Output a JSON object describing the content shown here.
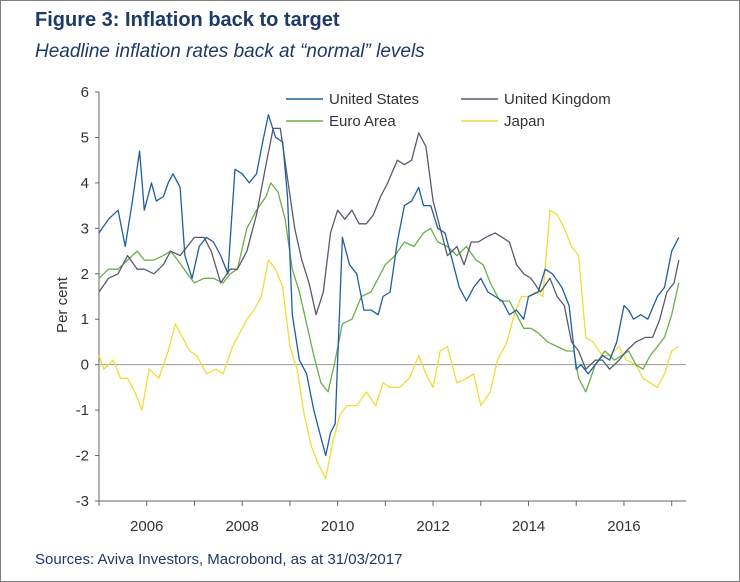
{
  "header": {
    "title": "Figure 3: Inflation back to target",
    "subtitle": "Headline inflation rates back at “normal” levels"
  },
  "footer": {
    "source": "Sources: Aviva Investors, Macrobond, as at 31/03/2017"
  },
  "chart_data": {
    "type": "line",
    "title": "Figure 3: Inflation back to target",
    "subtitle": "Headline inflation rates back at “normal” levels",
    "ylabel": "Per cent",
    "xlabel": "",
    "ylim": [
      -3,
      6
    ],
    "xlim": [
      2005.0,
      2017.3
    ],
    "y_ticks": [
      -3,
      -2,
      -1,
      0,
      1,
      2,
      3,
      4,
      5,
      6
    ],
    "x_ticks": [
      2006,
      2008,
      2010,
      2012,
      2014,
      2016
    ],
    "legend_position": "top-right",
    "zero_line": true,
    "series": [
      {
        "name": "United States",
        "color": "#1f5fa0",
        "x": [
          2005.0,
          2005.2,
          2005.4,
          2005.55,
          2005.7,
          2005.85,
          2005.95,
          2006.1,
          2006.2,
          2006.35,
          2006.45,
          2006.55,
          2006.7,
          2006.8,
          2006.95,
          2007.1,
          2007.25,
          2007.4,
          2007.55,
          2007.7,
          2007.85,
          2008.0,
          2008.15,
          2008.3,
          2008.45,
          2008.55,
          2008.7,
          2008.85,
          2008.95,
          2009.05,
          2009.2,
          2009.35,
          2009.5,
          2009.6,
          2009.75,
          2009.85,
          2009.95,
          2010.1,
          2010.25,
          2010.4,
          2010.55,
          2010.7,
          2010.85,
          2010.95,
          2011.1,
          2011.25,
          2011.4,
          2011.55,
          2011.7,
          2011.8,
          2011.95,
          2012.1,
          2012.25,
          2012.4,
          2012.55,
          2012.7,
          2012.85,
          2013.0,
          2013.15,
          2013.3,
          2013.45,
          2013.6,
          2013.75,
          2013.9,
          2014.0,
          2014.2,
          2014.35,
          2014.5,
          2014.7,
          2014.85,
          2015.0,
          2015.1,
          2015.25,
          2015.4,
          2015.55,
          2015.7,
          2015.85,
          2016.0,
          2016.1,
          2016.2,
          2016.35,
          2016.5,
          2016.7,
          2016.85,
          2017.0,
          2017.15
        ],
        "y": [
          2.9,
          3.2,
          3.4,
          2.6,
          3.6,
          4.7,
          3.4,
          4.0,
          3.6,
          3.7,
          4.0,
          4.2,
          3.9,
          2.4,
          1.9,
          2.6,
          2.8,
          2.7,
          2.4,
          2.0,
          4.3,
          4.2,
          4.0,
          4.2,
          5.0,
          5.5,
          5.0,
          4.9,
          3.7,
          1.1,
          0.1,
          -0.2,
          -1.0,
          -1.4,
          -2.0,
          -1.5,
          -1.3,
          2.8,
          2.2,
          2.0,
          1.2,
          1.2,
          1.1,
          1.5,
          1.6,
          2.7,
          3.5,
          3.6,
          3.9,
          3.5,
          3.5,
          3.0,
          2.9,
          2.3,
          1.7,
          1.4,
          1.7,
          1.9,
          1.6,
          1.5,
          1.4,
          1.1,
          1.2,
          1.0,
          1.5,
          1.6,
          2.1,
          2.0,
          1.7,
          1.3,
          -0.1,
          0.0,
          -0.2,
          0.0,
          0.2,
          0.1,
          0.5,
          1.3,
          1.2,
          1.0,
          1.1,
          1.0,
          1.5,
          1.7,
          2.5,
          2.8
        ]
      },
      {
        "name": "United Kingdom",
        "color": "#5a5a6e",
        "x": [
          2005.0,
          2005.2,
          2005.4,
          2005.6,
          2005.8,
          2005.95,
          2006.15,
          2006.35,
          2006.5,
          2006.7,
          2006.85,
          2007.0,
          2007.2,
          2007.35,
          2007.55,
          2007.75,
          2007.9,
          2008.1,
          2008.3,
          2008.5,
          2008.65,
          2008.8,
          2008.95,
          2009.1,
          2009.25,
          2009.4,
          2009.55,
          2009.7,
          2009.85,
          2010.0,
          2010.15,
          2010.3,
          2010.45,
          2010.6,
          2010.75,
          2010.9,
          2011.05,
          2011.25,
          2011.4,
          2011.55,
          2011.7,
          2011.85,
          2012.0,
          2012.15,
          2012.3,
          2012.5,
          2012.65,
          2012.8,
          2012.95,
          2013.1,
          2013.3,
          2013.45,
          2013.6,
          2013.75,
          2013.9,
          2014.05,
          2014.25,
          2014.45,
          2014.6,
          2014.75,
          2014.9,
          2015.05,
          2015.2,
          2015.4,
          2015.55,
          2015.7,
          2015.9,
          2016.05,
          2016.25,
          2016.45,
          2016.6,
          2016.75,
          2016.9,
          2017.05,
          2017.15
        ],
        "y": [
          1.6,
          1.9,
          2.0,
          2.4,
          2.1,
          2.1,
          2.0,
          2.2,
          2.5,
          2.4,
          2.6,
          2.8,
          2.8,
          2.5,
          1.8,
          2.1,
          2.1,
          2.5,
          3.3,
          4.4,
          5.2,
          5.2,
          4.1,
          3.0,
          2.3,
          1.8,
          1.1,
          1.6,
          2.9,
          3.4,
          3.2,
          3.4,
          3.1,
          3.1,
          3.3,
          3.7,
          4.0,
          4.5,
          4.4,
          4.5,
          5.1,
          4.8,
          3.6,
          3.0,
          2.4,
          2.6,
          2.2,
          2.7,
          2.7,
          2.8,
          2.9,
          2.8,
          2.7,
          2.2,
          2.0,
          1.9,
          1.6,
          1.9,
          1.5,
          1.3,
          0.5,
          0.3,
          -0.1,
          0.1,
          0.1,
          -0.1,
          0.1,
          0.3,
          0.5,
          0.6,
          0.6,
          1.0,
          1.6,
          1.8,
          2.3
        ]
      },
      {
        "name": "Euro Area",
        "color": "#6aaf4c",
        "x": [
          2005.0,
          2005.2,
          2005.4,
          2005.6,
          2005.8,
          2005.95,
          2006.15,
          2006.35,
          2006.5,
          2006.65,
          2006.85,
          2007.0,
          2007.2,
          2007.4,
          2007.6,
          2007.75,
          2007.9,
          2008.1,
          2008.3,
          2008.5,
          2008.6,
          2008.75,
          2008.9,
          2009.05,
          2009.2,
          2009.35,
          2009.5,
          2009.65,
          2009.8,
          2009.95,
          2010.1,
          2010.3,
          2010.5,
          2010.7,
          2010.85,
          2011.0,
          2011.2,
          2011.4,
          2011.6,
          2011.8,
          2011.95,
          2012.1,
          2012.3,
          2012.5,
          2012.7,
          2012.9,
          2013.05,
          2013.2,
          2013.4,
          2013.6,
          2013.75,
          2013.9,
          2014.05,
          2014.2,
          2014.4,
          2014.6,
          2014.8,
          2014.95,
          2015.05,
          2015.2,
          2015.4,
          2015.6,
          2015.8,
          2015.95,
          2016.1,
          2016.25,
          2016.4,
          2016.55,
          2016.7,
          2016.85,
          2017.0,
          2017.15
        ],
        "y": [
          1.9,
          2.1,
          2.1,
          2.3,
          2.5,
          2.3,
          2.3,
          2.4,
          2.5,
          2.3,
          2.0,
          1.8,
          1.9,
          1.9,
          1.8,
          2.0,
          2.1,
          3.0,
          3.4,
          3.7,
          4.0,
          3.8,
          3.2,
          2.1,
          1.6,
          0.9,
          0.2,
          -0.4,
          -0.6,
          0.1,
          0.9,
          1.0,
          1.5,
          1.6,
          1.9,
          2.2,
          2.4,
          2.7,
          2.6,
          2.9,
          3.0,
          2.7,
          2.6,
          2.4,
          2.6,
          2.3,
          2.2,
          1.8,
          1.4,
          1.4,
          1.1,
          0.8,
          0.8,
          0.7,
          0.5,
          0.4,
          0.3,
          0.3,
          -0.3,
          -0.6,
          0.0,
          0.3,
          0.1,
          0.2,
          0.3,
          0.0,
          -0.1,
          0.2,
          0.4,
          0.6,
          1.1,
          1.8
        ]
      },
      {
        "name": "Japan",
        "color": "#f0dc3a",
        "x": [
          2005.0,
          2005.1,
          2005.3,
          2005.45,
          2005.6,
          2005.75,
          2005.9,
          2006.05,
          2006.25,
          2006.45,
          2006.6,
          2006.75,
          2006.9,
          2007.05,
          2007.25,
          2007.45,
          2007.6,
          2007.8,
          2007.95,
          2008.1,
          2008.25,
          2008.4,
          2008.55,
          2008.7,
          2008.85,
          2009.0,
          2009.15,
          2009.3,
          2009.45,
          2009.6,
          2009.75,
          2009.9,
          2010.05,
          2010.2,
          2010.4,
          2010.6,
          2010.8,
          2010.95,
          2011.1,
          2011.3,
          2011.5,
          2011.7,
          2011.85,
          2012.0,
          2012.15,
          2012.3,
          2012.5,
          2012.7,
          2012.85,
          2013.0,
          2013.2,
          2013.35,
          2013.55,
          2013.7,
          2013.85,
          2014.0,
          2014.15,
          2014.3,
          2014.45,
          2014.6,
          2014.75,
          2014.9,
          2015.05,
          2015.2,
          2015.35,
          2015.55,
          2015.7,
          2015.9,
          2016.05,
          2016.25,
          2016.4,
          2016.55,
          2016.7,
          2016.85,
          2017.0,
          2017.15
        ],
        "y": [
          0.2,
          -0.1,
          0.1,
          -0.3,
          -0.3,
          -0.6,
          -1.0,
          -0.1,
          -0.3,
          0.3,
          0.9,
          0.6,
          0.3,
          0.2,
          -0.2,
          -0.1,
          -0.2,
          0.4,
          0.7,
          1.0,
          1.2,
          1.5,
          2.3,
          2.1,
          1.7,
          0.4,
          -0.1,
          -1.1,
          -1.8,
          -2.2,
          -2.5,
          -1.7,
          -1.1,
          -0.9,
          -0.9,
          -0.6,
          -0.9,
          -0.4,
          -0.5,
          -0.5,
          -0.3,
          0.2,
          -0.2,
          -0.5,
          0.3,
          0.4,
          -0.4,
          -0.3,
          -0.2,
          -0.9,
          -0.6,
          0.1,
          0.5,
          1.1,
          1.5,
          1.5,
          1.6,
          1.5,
          3.4,
          3.3,
          3.0,
          2.6,
          2.4,
          0.6,
          0.5,
          0.2,
          0.2,
          0.4,
          0.1,
          0.0,
          -0.3,
          -0.4,
          -0.5,
          -0.2,
          0.3,
          0.4
        ]
      }
    ]
  }
}
